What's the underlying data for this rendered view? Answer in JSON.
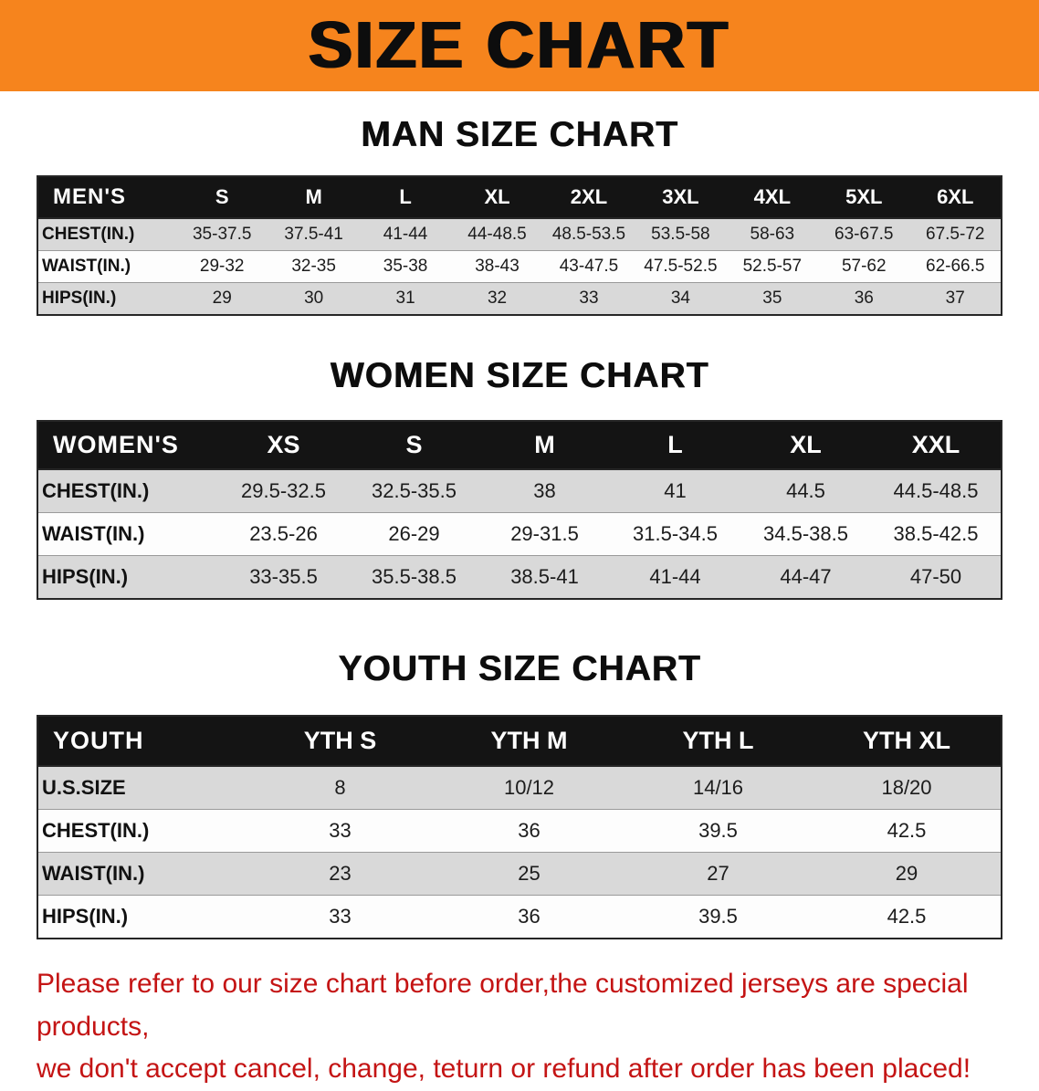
{
  "banner": {
    "title": "SIZE CHART"
  },
  "colors": {
    "banner_bg": "#f6841d",
    "header_bg": "#141414",
    "row_shade": "#d9d9d9",
    "disclaimer_red": "#c41414"
  },
  "men": {
    "heading": "MAN SIZE CHART",
    "table": {
      "header": [
        "MEN'S",
        "S",
        "M",
        "L",
        "XL",
        "2XL",
        "3XL",
        "4XL",
        "5XL",
        "6XL"
      ],
      "rows": [
        [
          "CHEST(IN.)",
          "35-37.5",
          "37.5-41",
          "41-44",
          "44-48.5",
          "48.5-53.5",
          "53.5-58",
          "58-63",
          "63-67.5",
          "67.5-72"
        ],
        [
          "WAIST(IN.)",
          "29-32",
          "32-35",
          "35-38",
          "38-43",
          "43-47.5",
          "47.5-52.5",
          "52.5-57",
          "57-62",
          "62-66.5"
        ],
        [
          "HIPS(IN.)",
          "29",
          "30",
          "31",
          "32",
          "33",
          "34",
          "35",
          "36",
          "37"
        ]
      ]
    }
  },
  "women": {
    "heading": "WOMEN SIZE CHART",
    "table": {
      "header": [
        "WOMEN'S",
        "XS",
        "S",
        "M",
        "L",
        "XL",
        "XXL"
      ],
      "rows": [
        [
          "CHEST(IN.)",
          "29.5-32.5",
          "32.5-35.5",
          "38",
          "41",
          "44.5",
          "44.5-48.5"
        ],
        [
          "WAIST(IN.)",
          "23.5-26",
          "26-29",
          "29-31.5",
          "31.5-34.5",
          "34.5-38.5",
          "38.5-42.5"
        ],
        [
          "HIPS(IN.)",
          "33-35.5",
          "35.5-38.5",
          "38.5-41",
          "41-44",
          "44-47",
          "47-50"
        ]
      ]
    }
  },
  "youth": {
    "heading": "YOUTH SIZE CHART",
    "table": {
      "header": [
        "YOUTH",
        "YTH S",
        "YTH M",
        "YTH L",
        "YTH XL"
      ],
      "rows": [
        [
          "U.S.SIZE",
          "8",
          "10/12",
          "14/16",
          "18/20"
        ],
        [
          "CHEST(IN.)",
          "33",
          "36",
          "39.5",
          "42.5"
        ],
        [
          "WAIST(IN.)",
          "23",
          "25",
          "27",
          "29"
        ],
        [
          "HIPS(IN.)",
          "33",
          "36",
          "39.5",
          "42.5"
        ]
      ]
    }
  },
  "disclaimer": {
    "line1": "Please refer to our size chart before order,the customized jerseys are special products,",
    "line2": "we don't accept cancel, change, teturn or refund after order has been placed!"
  }
}
